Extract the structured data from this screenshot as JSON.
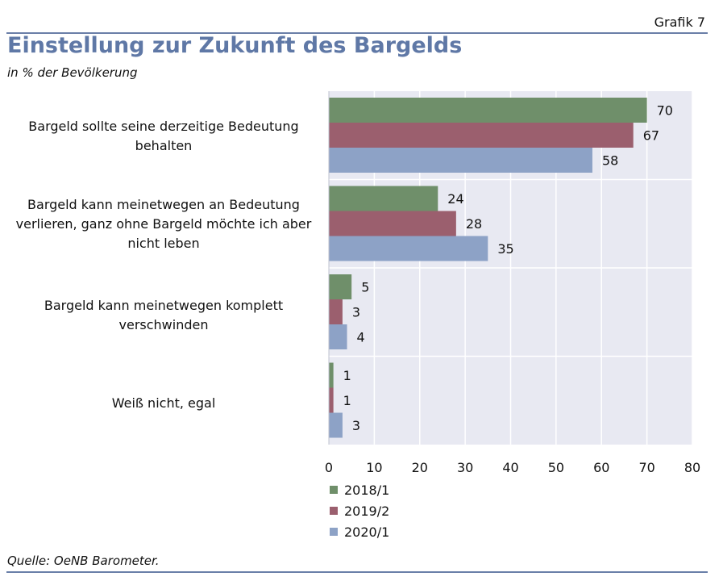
{
  "header": {
    "grafik_label": "Grafik 7",
    "title": "Einstellung zur Zukunft des Bargelds",
    "subtitle": "in % der Bevölkerung"
  },
  "footer": {
    "source": "Quelle: OeNB Barometer."
  },
  "colors": {
    "series_2018": "#6f8f6a",
    "series_2019": "#9b5f6e",
    "series_2020": "#8da2c6",
    "plot_background": "#e8e9f2",
    "title": "#5f78a6"
  },
  "chart_data": {
    "type": "bar",
    "orientation": "horizontal",
    "categories": [
      "Bargeld sollte seine derzeitige Bedeutung behalten",
      "Bargeld kann meinetwegen an Bedeutung verlieren, ganz ohne Bargeld möchte ich aber nicht leben",
      "Bargeld kann meinetwegen komplett verschwinden",
      "Weiß nicht, egal"
    ],
    "series": [
      {
        "name": "2018/1",
        "color": "#6f8f6a",
        "values": [
          70,
          24,
          5,
          1
        ]
      },
      {
        "name": "2019/2",
        "color": "#9b5f6e",
        "values": [
          67,
          28,
          3,
          1
        ]
      },
      {
        "name": "2020/1",
        "color": "#8da2c6",
        "values": [
          58,
          35,
          4,
          3
        ]
      }
    ],
    "xlim": [
      0,
      80
    ],
    "xticks": [
      0,
      10,
      20,
      30,
      40,
      50,
      60,
      70,
      80
    ],
    "grid": true,
    "legend_position": "bottom",
    "data_labels": true
  }
}
